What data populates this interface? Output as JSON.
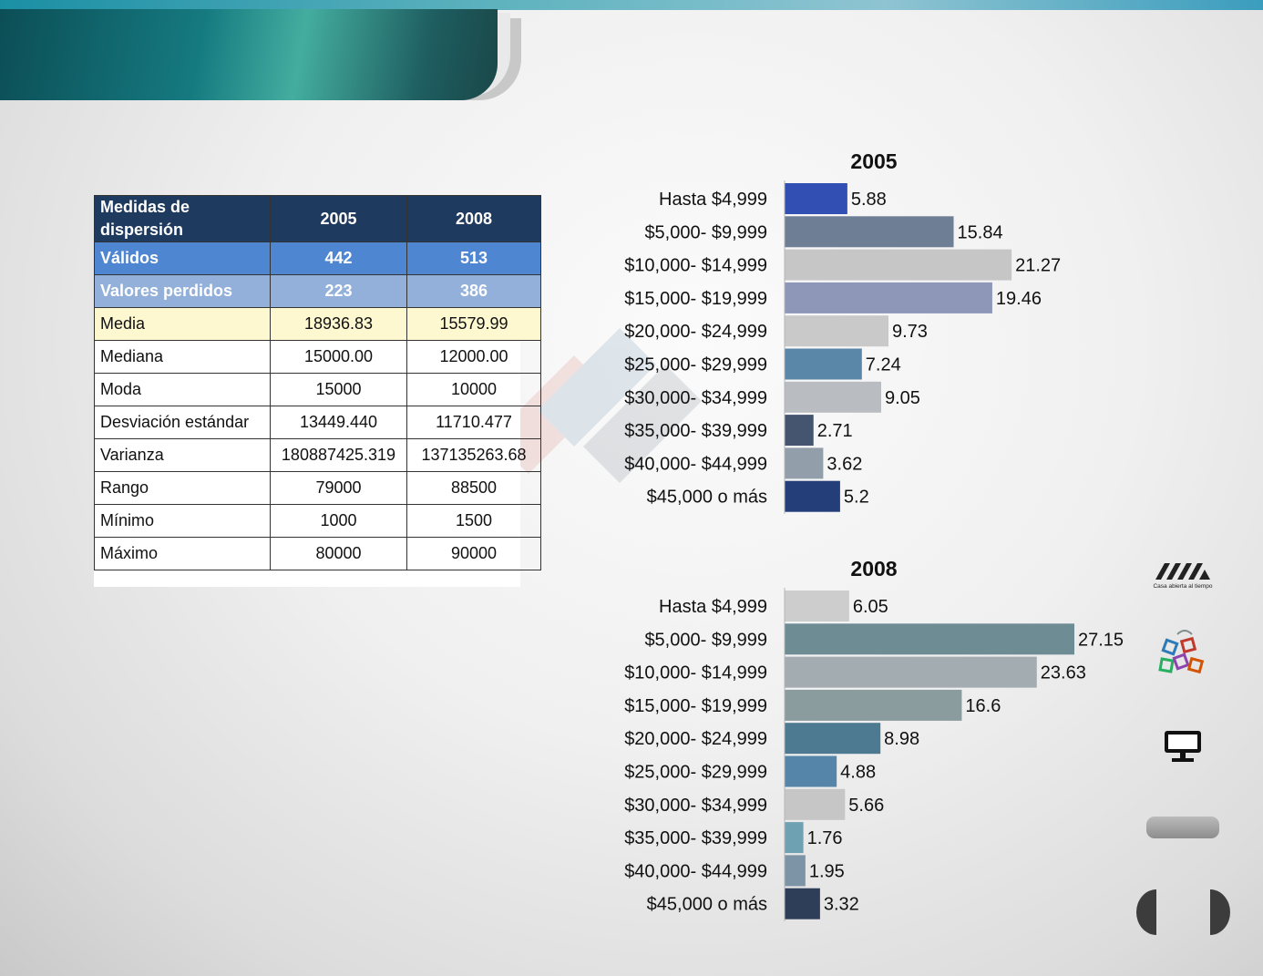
{
  "table": {
    "header": [
      "Medidas de dispersión",
      "2005",
      "2008"
    ],
    "rows": [
      {
        "label": "Válidos",
        "v2005": "442",
        "v2008": "513",
        "style": "valid"
      },
      {
        "label": "Valores perdidos",
        "v2005": "223",
        "v2008": "386",
        "style": "lost"
      },
      {
        "label": "Media",
        "v2005": "18936.83",
        "v2008": "15579.99",
        "style": "mean"
      },
      {
        "label": "Mediana",
        "v2005": "15000.00",
        "v2008": "12000.00",
        "style": "plain"
      },
      {
        "label": "Moda",
        "v2005": "15000",
        "v2008": "10000",
        "style": "plain"
      },
      {
        "label": "Desviación estándar",
        "v2005": "13449.440",
        "v2008": "11710.477",
        "style": "plain"
      },
      {
        "label": "Varianza",
        "v2005": "180887425.319",
        "v2008": "137135263.68",
        "style": "plain"
      },
      {
        "label": "Rango",
        "v2005": "79000",
        "v2008": "88500",
        "style": "plain"
      },
      {
        "label": "Mínimo",
        "v2005": "1000",
        "v2008": "1500",
        "style": "plain"
      },
      {
        "label": "Máximo",
        "v2005": "80000",
        "v2008": "90000",
        "style": "plain"
      }
    ]
  },
  "logo_text": "Casa abierta al tiempo",
  "chart_data": [
    {
      "type": "bar",
      "orientation": "horizontal",
      "title": "2005",
      "categories": [
        "Hasta $4,999",
        "$5,000- $9,999",
        "$10,000- $14,999",
        "$15,000- $19,999",
        "$20,000- $24,999",
        "$25,000- $29,999",
        "$30,000- $34,999",
        "$35,000- $39,999",
        "$40,000- $44,999",
        "$45,000 o más"
      ],
      "values": [
        5.88,
        15.84,
        21.27,
        19.46,
        9.73,
        7.24,
        9.05,
        2.71,
        3.62,
        5.2
      ],
      "value_labels": [
        "5.88",
        "15.84",
        "21.27",
        "19.46",
        "9.73",
        "7.24",
        "9.05",
        "2.71",
        "3.62",
        "5.2"
      ],
      "colors": [
        "#3250b4",
        "#6e7f95",
        "#c6c6c6",
        "#8e97b8",
        "#c9c9c9",
        "#5a86a8",
        "#b9bcc0",
        "#455570",
        "#939eab",
        "#233e78"
      ],
      "xlim": [
        0,
        27.15
      ],
      "grid": false
    },
    {
      "type": "bar",
      "orientation": "horizontal",
      "title": "2008",
      "categories": [
        "Hasta $4,999",
        "$5,000- $9,999",
        "$10,000- $14,999",
        "$15,000- $19,999",
        "$20,000- $24,999",
        "$25,000- $29,999",
        "$30,000- $34,999",
        "$35,000- $39,999",
        "$40,000- $44,999",
        "$45,000 o más"
      ],
      "values": [
        6.05,
        27.15,
        23.63,
        16.6,
        8.98,
        4.88,
        5.66,
        1.76,
        1.95,
        3.32
      ],
      "value_labels": [
        "6.05",
        "27.15",
        "23.63",
        "16.6",
        "8.98",
        "4.88",
        "5.66",
        "1.76",
        "1.95",
        "3.32"
      ],
      "colors": [
        "#cdcdcd",
        "#6e8c93",
        "#a3acb0",
        "#8b9c9f",
        "#4e7a91",
        "#5585a8",
        "#c6c6c6",
        "#6ea2b2",
        "#7d93a6",
        "#2f3e58"
      ],
      "xlim": [
        0,
        27.15
      ],
      "grid": false
    }
  ]
}
